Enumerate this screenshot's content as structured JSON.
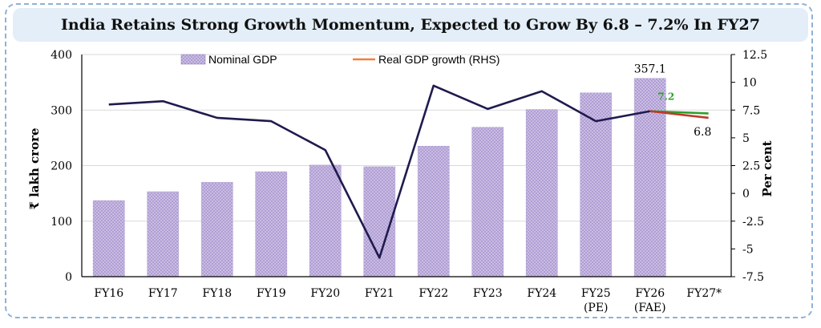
{
  "title": "India Retains Strong Growth Momentum, Expected to Grow By 6.8 – 7.2% In FY27",
  "chart_data": {
    "type": "bar",
    "categories": [
      "FY16",
      "FY17",
      "FY18",
      "FY19",
      "FY20",
      "FY21",
      "FY22",
      "FY23",
      "FY24",
      "FY25\n(PE)",
      "FY26\n(FAE)",
      "FY27*"
    ],
    "ylabel": "₹ lakh crore",
    "y2label": "Per cent",
    "ylim": [
      0,
      400
    ],
    "y2lim": [
      -7.5,
      12.5
    ],
    "yticks": [
      "0",
      "100",
      "200",
      "300",
      "400"
    ],
    "y2ticks": [
      "-7.5",
      "-5",
      "-2.5",
      "0",
      "2.5",
      "5",
      "7.5",
      "10",
      "12.5"
    ],
    "grid": "horizontal",
    "legend": "top",
    "series": [
      {
        "name": "Nominal GDP",
        "axis": "left",
        "type": "bar",
        "color": "#b8a6d6",
        "values": [
          137,
          153,
          170,
          189,
          201,
          198,
          235,
          269,
          301,
          331,
          357.1,
          null
        ],
        "data_labels": {
          "10": "357.1"
        }
      },
      {
        "name": "Real GDP growth (RHS)",
        "axis": "right",
        "type": "line",
        "color": "#1f1b4d",
        "values": [
          8.0,
          8.3,
          6.8,
          6.5,
          3.9,
          -5.8,
          9.7,
          7.6,
          9.2,
          6.5,
          7.4,
          null
        ]
      }
    ],
    "projections": [
      {
        "name": "upper",
        "from": [
          10,
          7.4
        ],
        "to": [
          11,
          7.2
        ],
        "color": "#2ca02c",
        "label": "7.2"
      },
      {
        "name": "lower",
        "from": [
          10,
          7.4
        ],
        "to": [
          11,
          6.8
        ],
        "color": "#c0392b",
        "label": "6.8"
      }
    ],
    "legend_colors": {
      "Nominal GDP": "#9b84c2",
      "Real GDP growth (RHS)": "#f07f3c"
    }
  }
}
